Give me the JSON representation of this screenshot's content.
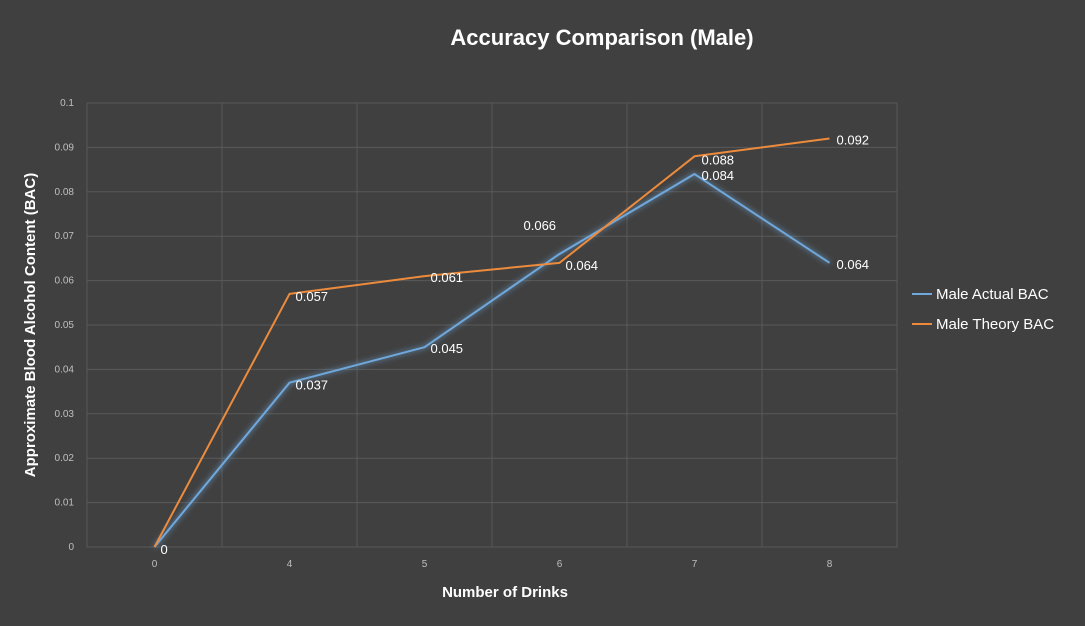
{
  "chart_data": {
    "type": "line",
    "title": "Accuracy Comparison (Male)",
    "xlabel": "Number of Drinks",
    "ylabel": "Approximate Blood Alcohol Content (BAC)",
    "categories": [
      "0",
      "4",
      "5",
      "6",
      "7",
      "8"
    ],
    "ylim": [
      0,
      0.1
    ],
    "yticks": [
      "0",
      "0.01",
      "0.02",
      "0.03",
      "0.04",
      "0.05",
      "0.06",
      "0.07",
      "0.08",
      "0.09",
      "0.1"
    ],
    "grid": true,
    "legend_position": "right",
    "series": [
      {
        "name": "Male Actual BAC",
        "color": "#6fa8dc",
        "values": [
          0,
          0.037,
          0.045,
          0.066,
          0.084,
          0.064
        ],
        "labels": [
          "0",
          "0.037",
          "0.045",
          "0.066",
          "0.084",
          "0.064"
        ]
      },
      {
        "name": "Male Theory BAC",
        "color": "#ed8b3d",
        "values": [
          0,
          0.057,
          0.061,
          0.064,
          0.088,
          0.092
        ],
        "labels": [
          "",
          "0.057",
          "0.061",
          "0.064",
          "0.088",
          "0.092"
        ]
      }
    ]
  }
}
